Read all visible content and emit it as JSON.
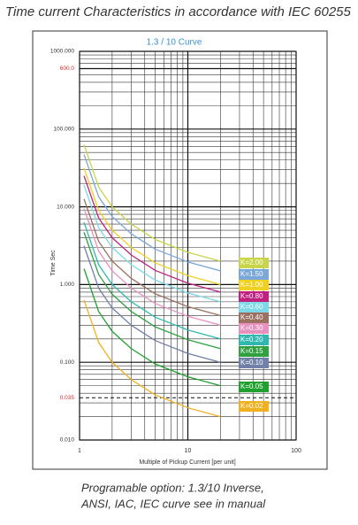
{
  "title": "Time current Characteristics in accordance with IEC 60255",
  "caption": [
    "Programable option: 1.3/10 Inverse,",
    "ANSI, IAC, IEC curve see in manual"
  ],
  "chart_data": {
    "type": "line",
    "subtitle": "1.3 / 10 Curve",
    "x_label": "Multiple of Pickup Current [per unit]",
    "y_label": "Time Sec",
    "log_x": true,
    "log_y": true,
    "grid": true,
    "xlim": [
      1,
      100
    ],
    "xticks": [
      1,
      10,
      100
    ],
    "ylim": [
      0.01,
      1000
    ],
    "yticks": [
      {
        "value": 1000,
        "label": "1000.000"
      },
      {
        "value": 600,
        "label": "600.0",
        "color": "#d03030"
      },
      {
        "value": 100,
        "label": "100.000"
      },
      {
        "value": 10,
        "label": "10.000"
      },
      {
        "value": 1,
        "label": "1.000"
      },
      {
        "value": 0.1,
        "label": "0.100"
      },
      {
        "value": 0.035,
        "label": "0.035",
        "color": "#d03030",
        "style": "dashed"
      },
      {
        "value": 0.01,
        "label": "0.010"
      }
    ],
    "x": [
      1.1,
      1.5,
      2,
      3,
      5,
      10,
      20
    ],
    "series": [
      {
        "name": "K=2.00",
        "color": "#c8d44a",
        "values": [
          63,
          18,
          10,
          6,
          3.8,
          2.6,
          2.0
        ]
      },
      {
        "name": "K=1.50",
        "color": "#7aa8d8",
        "values": [
          47,
          13.5,
          7.5,
          4.5,
          2.85,
          1.95,
          1.5
        ]
      },
      {
        "name": "K=1.00",
        "color": "#f0d020",
        "values": [
          31.5,
          9,
          5,
          3,
          1.9,
          1.3,
          1.0
        ]
      },
      {
        "name": "K=0.80",
        "color": "#c02080",
        "values": [
          25,
          7.2,
          4,
          2.4,
          1.52,
          1.04,
          0.8
        ]
      },
      {
        "name": "K=0.60",
        "color": "#7dd8e8",
        "values": [
          19,
          5.4,
          3,
          1.8,
          1.14,
          0.78,
          0.6
        ]
      },
      {
        "name": "K=0.40",
        "color": "#9a7060",
        "values": [
          12.6,
          3.6,
          2,
          1.2,
          0.76,
          0.52,
          0.4
        ]
      },
      {
        "name": "K=0.30",
        "color": "#e890c0",
        "values": [
          9.5,
          2.7,
          1.5,
          0.9,
          0.57,
          0.39,
          0.3
        ]
      },
      {
        "name": "K=0.20",
        "color": "#30b8b0",
        "values": [
          6.3,
          1.8,
          1,
          0.6,
          0.38,
          0.26,
          0.2
        ]
      },
      {
        "name": "K=0.15",
        "color": "#30a040",
        "values": [
          4.7,
          1.35,
          0.75,
          0.45,
          0.285,
          0.195,
          0.15
        ]
      },
      {
        "name": "K=0.10",
        "color": "#7080a8",
        "values": [
          3.15,
          0.9,
          0.5,
          0.3,
          0.19,
          0.13,
          0.1
        ]
      },
      {
        "name": "K=0.05",
        "color": "#20a030",
        "values": [
          1.6,
          0.45,
          0.25,
          0.15,
          0.095,
          0.065,
          0.05
        ]
      },
      {
        "name": "K=0.02",
        "color": "#f0b020",
        "values": [
          0.63,
          0.18,
          0.1,
          0.06,
          0.038,
          0.026,
          0.02
        ]
      }
    ]
  }
}
